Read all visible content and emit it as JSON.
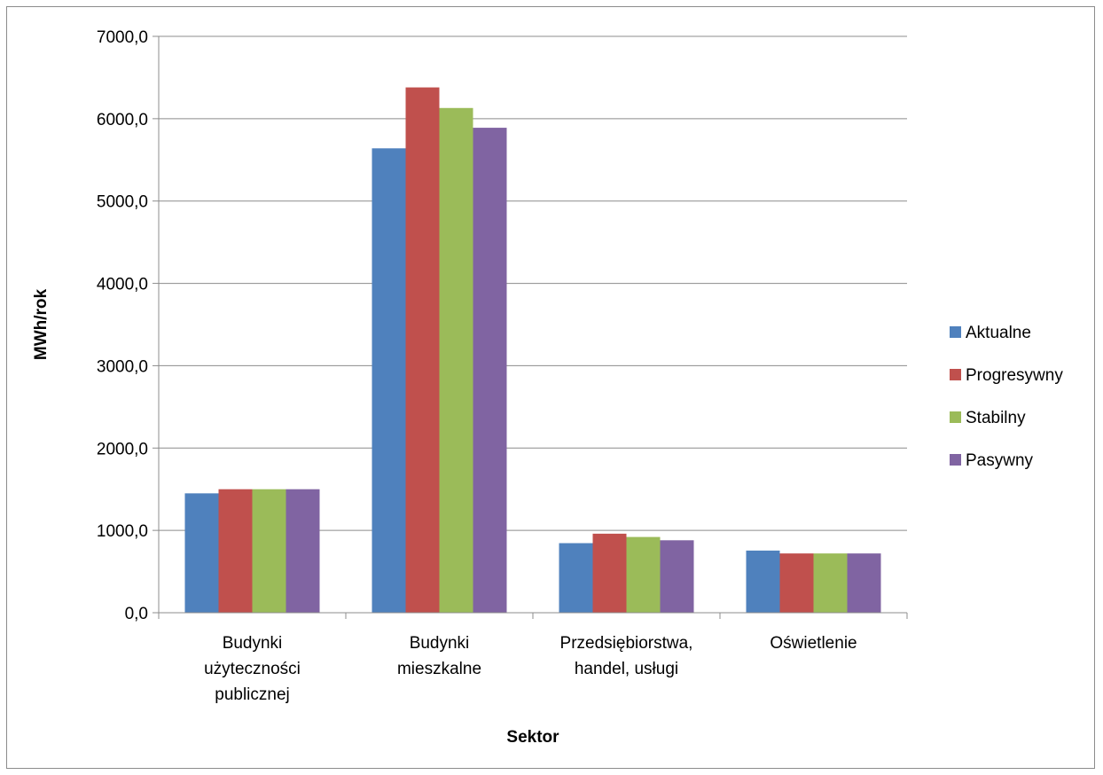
{
  "chart_data": {
    "type": "bar",
    "xlabel": "Sektor",
    "ylabel": "MWh/rok",
    "ylim": [
      0,
      7000
    ],
    "y_ticks": [
      "0,0",
      "1000,0",
      "2000,0",
      "3000,0",
      "4000,0",
      "5000,0",
      "6000,0",
      "7000,0"
    ],
    "grid": true,
    "legend_position": "right",
    "categories": [
      [
        "Budynki",
        "użyteczności",
        "publicznej"
      ],
      [
        "Budynki",
        "mieszkalne"
      ],
      [
        "Przedsiębiorstwa,",
        "handel, usługi"
      ],
      [
        "Oświetlenie"
      ]
    ],
    "series": [
      {
        "name": "Aktualne",
        "color": "#4F81BD",
        "values": [
          1450,
          5640,
          845,
          755
        ]
      },
      {
        "name": "Progresywny",
        "color": "#C0504D",
        "values": [
          1500,
          6380,
          960,
          720
        ]
      },
      {
        "name": "Stabilny",
        "color": "#9BBB59",
        "values": [
          1500,
          6130,
          920,
          720
        ]
      },
      {
        "name": "Pasywny",
        "color": "#8064A2",
        "values": [
          1500,
          5890,
          880,
          720
        ]
      }
    ]
  }
}
